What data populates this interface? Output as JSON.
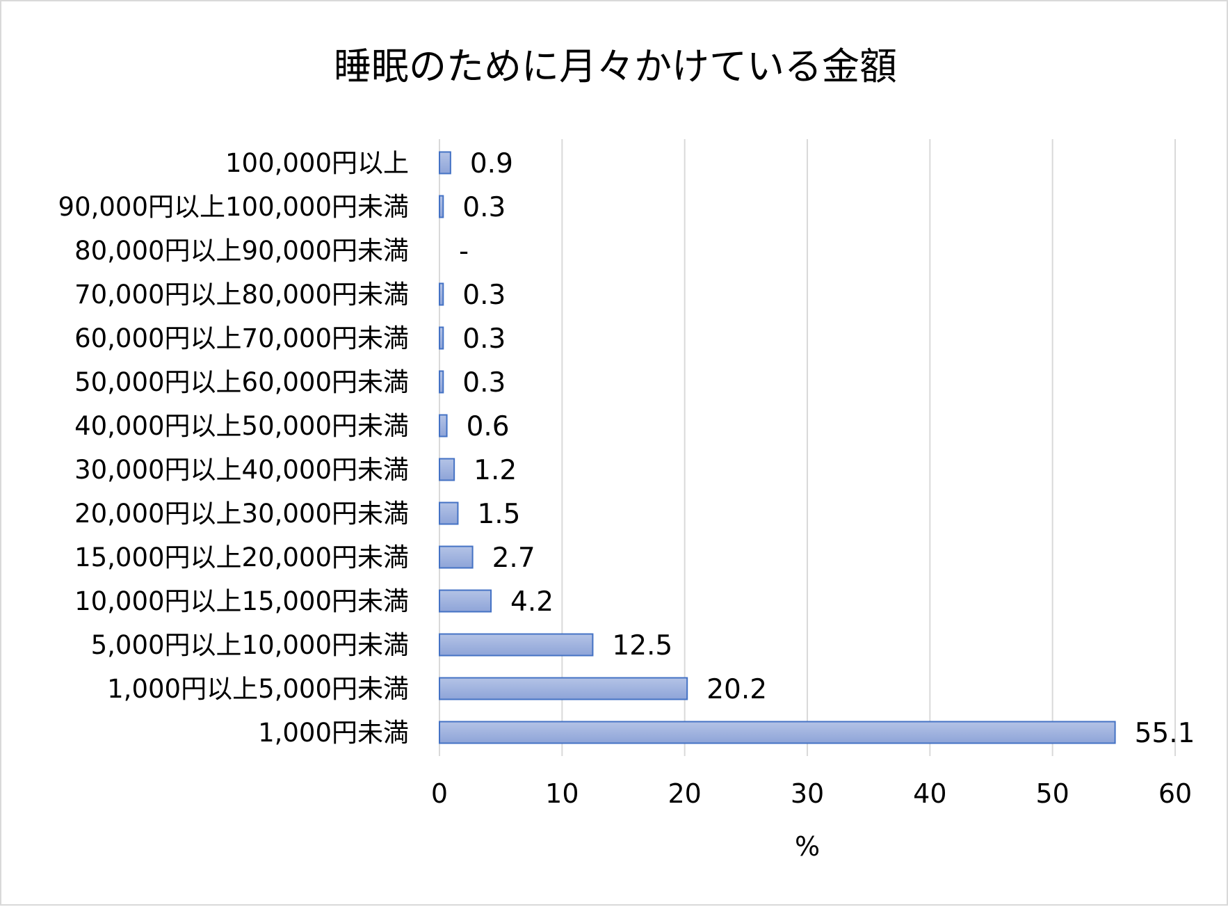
{
  "chart_data": {
    "type": "bar",
    "orientation": "horizontal",
    "title": "睡眠のために月々かけている金額",
    "xlabel": "%",
    "ylabel": "",
    "xlim": [
      0,
      60
    ],
    "ticks": [
      "0",
      "10",
      "20",
      "30",
      "40",
      "50",
      "60"
    ],
    "categories": [
      "100,000円以上",
      "90,000円以上100,000円未満",
      "80,000円以上90,000円未満",
      "70,000円以上80,000円未満",
      "60,000円以上70,000円未満",
      "50,000円以上60,000円未満",
      "40,000円以上50,000円未満",
      "30,000円以上40,000円未満",
      "20,000円以上30,000円未満",
      "15,000円以上20,000円未満",
      "10,000円以上15,000円未満",
      "5,000円以上10,000円未満",
      "1,000円以上5,000円未満",
      "1,000円未満"
    ],
    "values": [
      0.9,
      0.3,
      0,
      0.3,
      0.3,
      0.3,
      0.6,
      1.2,
      1.5,
      2.7,
      4.2,
      12.5,
      20.2,
      55.1
    ],
    "value_labels": [
      "0.9",
      "0.3",
      "-",
      "0.3",
      "0.3",
      "0.3",
      "0.6",
      "1.2",
      "1.5",
      "2.7",
      "4.2",
      "12.5",
      "20.2",
      "55.1"
    ],
    "bar_color": "#4472c4",
    "bar_fill_light": "#b4c3e6",
    "bar_fill_dark": "#8ea4d8",
    "grid": true,
    "legend": "none"
  }
}
